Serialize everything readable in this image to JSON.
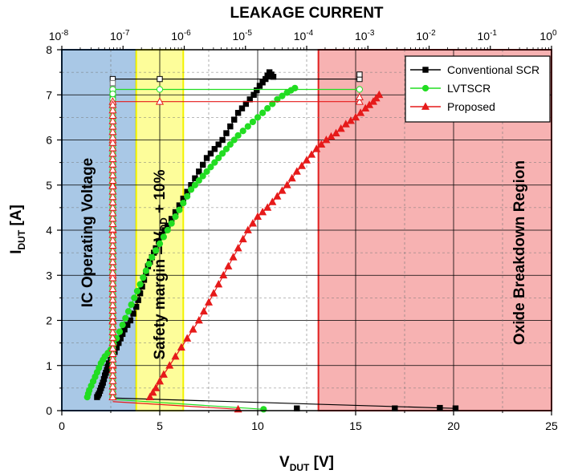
{
  "chart_data": {
    "type": "scatter",
    "title": "LEAKAGE CURRENT",
    "xlabel": "V",
    "xlabel_sub": "DUT",
    "xlabel_unit": " [V]",
    "ylabel": "I",
    "ylabel_sub": "DUT",
    "ylabel_unit": " [A]",
    "xlim": [
      0,
      25
    ],
    "ylim": [
      0,
      8
    ],
    "x_ticks": [
      0,
      5,
      10,
      15,
      20,
      25
    ],
    "y_ticks": [
      0,
      1,
      2,
      3,
      4,
      5,
      6,
      7,
      8
    ],
    "top_axis": {
      "scale": "log",
      "lim_exp": [
        -8,
        0
      ],
      "tick_labels": [
        {
          "base": "10",
          "exp": "-8"
        },
        {
          "base": "10",
          "exp": "-7"
        },
        {
          "base": "10",
          "exp": "-6"
        },
        {
          "base": "10",
          "exp": "-5"
        },
        {
          "base": "10",
          "exp": "-4"
        },
        {
          "base": "10",
          "exp": "-3"
        },
        {
          "base": "10",
          "exp": "-2"
        },
        {
          "base": "10",
          "exp": "-1"
        },
        {
          "base": "10",
          "exp": "0"
        }
      ]
    },
    "grid": true,
    "legend_position": "top-right",
    "regions": [
      {
        "label": "IC Operating Voltage",
        "x_range": [
          0,
          3.8
        ],
        "fill": "#a9c8e6",
        "stroke": "#1f6fc0"
      },
      {
        "label_main": "Safety margin = V",
        "label_sub": "DD",
        "label_end": " + 10%",
        "x_range": [
          3.8,
          6.2
        ],
        "fill": "#fdfd9a",
        "stroke": "#f3f300"
      },
      {
        "label": "Oxide Breakdown Region",
        "x_range": [
          13.1,
          25
        ],
        "fill": "#f7b2b2",
        "stroke": "#e02020"
      }
    ],
    "series": [
      {
        "name": "Conventional SCR",
        "color": "#000000",
        "marker": "square",
        "tlp": [
          [
            1.8,
            0.3
          ],
          [
            1.9,
            0.38
          ],
          [
            2.0,
            0.5
          ],
          [
            2.1,
            0.62
          ],
          [
            2.2,
            0.78
          ],
          [
            2.3,
            0.9
          ],
          [
            2.4,
            1.05
          ],
          [
            2.6,
            1.2
          ],
          [
            2.8,
            1.4
          ],
          [
            3.0,
            1.6
          ],
          [
            3.2,
            1.8
          ],
          [
            3.5,
            2.0
          ],
          [
            3.8,
            2.3
          ],
          [
            4.0,
            2.6
          ],
          [
            4.2,
            2.9
          ],
          [
            4.4,
            3.2
          ],
          [
            4.6,
            3.4
          ],
          [
            4.8,
            3.6
          ],
          [
            5.1,
            3.9
          ],
          [
            5.4,
            4.1
          ],
          [
            5.8,
            4.4
          ],
          [
            6.2,
            4.7
          ],
          [
            6.6,
            5.0
          ],
          [
            7.0,
            5.3
          ],
          [
            7.4,
            5.6
          ],
          [
            7.8,
            5.8
          ],
          [
            8.2,
            6.0
          ],
          [
            8.6,
            6.3
          ],
          [
            9.0,
            6.6
          ],
          [
            9.4,
            6.8
          ],
          [
            9.8,
            7.0
          ],
          [
            10.1,
            7.2
          ],
          [
            10.4,
            7.35
          ],
          [
            10.6,
            7.5
          ],
          [
            10.8,
            7.4
          ]
        ],
        "tlp_marker_every": 2,
        "leakage": [
          [
            2.6,
            0.3
          ],
          [
            2.6,
            1.0
          ],
          [
            2.6,
            2.0
          ],
          [
            2.6,
            3.0
          ],
          [
            2.6,
            4.0
          ],
          [
            2.6,
            5.0
          ],
          [
            2.6,
            6.0
          ],
          [
            2.6,
            7.0
          ],
          [
            2.6,
            7.35
          ],
          [
            5.0,
            7.35
          ],
          [
            15.2,
            7.35
          ],
          [
            15.2,
            7.45
          ]
        ],
        "tail": [
          [
            2.6,
            0.28
          ],
          [
            20.1,
            0.05
          ]
        ],
        "tail_points": [
          [
            12.0,
            0.05
          ],
          [
            17.0,
            0.05
          ],
          [
            19.3,
            0.06
          ],
          [
            20.1,
            0.05
          ]
        ]
      },
      {
        "name": "LVTSCR",
        "color": "#22dd22",
        "marker": "circle",
        "tlp": [
          [
            1.3,
            0.3
          ],
          [
            1.4,
            0.45
          ],
          [
            1.6,
            0.65
          ],
          [
            1.8,
            0.85
          ],
          [
            2.0,
            1.05
          ],
          [
            2.2,
            1.2
          ],
          [
            2.5,
            1.35
          ],
          [
            2.8,
            1.6
          ],
          [
            3.1,
            1.9
          ],
          [
            3.4,
            2.2
          ],
          [
            3.7,
            2.5
          ],
          [
            4.0,
            2.8
          ],
          [
            4.3,
            3.1
          ],
          [
            4.6,
            3.4
          ],
          [
            5.0,
            3.7
          ],
          [
            5.4,
            4.0
          ],
          [
            5.8,
            4.3
          ],
          [
            6.2,
            4.6
          ],
          [
            6.6,
            4.9
          ],
          [
            7.0,
            5.1
          ],
          [
            7.4,
            5.3
          ],
          [
            7.8,
            5.5
          ],
          [
            8.2,
            5.7
          ],
          [
            8.6,
            5.9
          ],
          [
            9.0,
            6.1
          ],
          [
            9.5,
            6.3
          ],
          [
            10.0,
            6.5
          ],
          [
            10.5,
            6.7
          ],
          [
            11.0,
            6.9
          ],
          [
            11.5,
            7.05
          ],
          [
            11.9,
            7.15
          ]
        ],
        "tlp_marker_every": 2,
        "leakage": [
          [
            2.6,
            0.3
          ],
          [
            2.6,
            1.0
          ],
          [
            2.6,
            2.0
          ],
          [
            2.6,
            3.0
          ],
          [
            2.6,
            4.0
          ],
          [
            2.6,
            5.0
          ],
          [
            2.6,
            6.0
          ],
          [
            2.6,
            7.0
          ],
          [
            2.6,
            7.12
          ],
          [
            5.0,
            7.12
          ],
          [
            15.2,
            7.12
          ]
        ],
        "tail": [
          [
            2.6,
            0.25
          ],
          [
            10.3,
            0.03
          ]
        ],
        "tail_points": [
          [
            10.3,
            0.03
          ]
        ]
      },
      {
        "name": "Proposed",
        "color": "#e61a1a",
        "marker": "triangle",
        "tlp": [
          [
            4.5,
            0.3
          ],
          [
            4.8,
            0.5
          ],
          [
            5.2,
            0.8
          ],
          [
            5.8,
            1.2
          ],
          [
            6.4,
            1.6
          ],
          [
            7.0,
            2.0
          ],
          [
            7.5,
            2.4
          ],
          [
            8.0,
            2.8
          ],
          [
            8.5,
            3.2
          ],
          [
            9.0,
            3.6
          ],
          [
            9.5,
            4.0
          ],
          [
            10.0,
            4.3
          ],
          [
            10.5,
            4.5
          ],
          [
            11.0,
            4.75
          ],
          [
            11.5,
            5.0
          ],
          [
            12.0,
            5.3
          ],
          [
            12.5,
            5.55
          ],
          [
            13.0,
            5.8
          ],
          [
            13.5,
            6.0
          ],
          [
            14.0,
            6.15
          ],
          [
            14.5,
            6.35
          ],
          [
            15.0,
            6.5
          ],
          [
            15.5,
            6.7
          ],
          [
            15.9,
            6.85
          ],
          [
            16.2,
            7.0
          ]
        ],
        "tlp_marker_every": 1,
        "leakage": [
          [
            2.6,
            0.3
          ],
          [
            2.6,
            1.0
          ],
          [
            2.6,
            2.0
          ],
          [
            2.6,
            3.0
          ],
          [
            2.6,
            4.0
          ],
          [
            2.6,
            5.0
          ],
          [
            2.6,
            6.0
          ],
          [
            2.6,
            6.85
          ],
          [
            5.0,
            6.85
          ],
          [
            15.2,
            6.85
          ],
          [
            15.2,
            6.95
          ]
        ],
        "tail": [
          [
            2.6,
            0.2
          ],
          [
            9.0,
            0.03
          ]
        ],
        "tail_points": [
          [
            9.0,
            0.03
          ]
        ]
      }
    ]
  }
}
